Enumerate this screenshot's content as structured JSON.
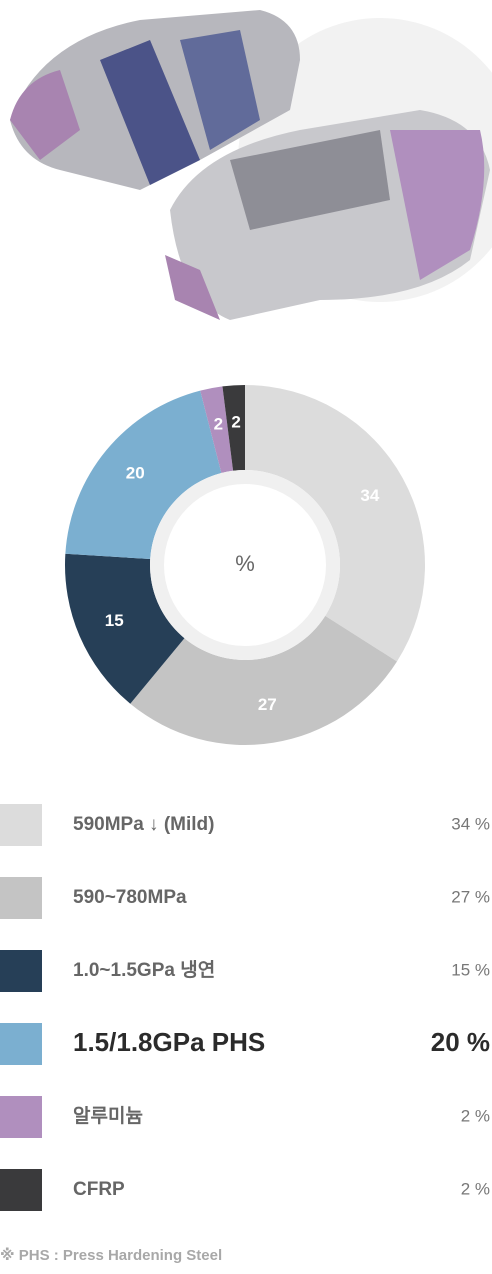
{
  "chart_data": {
    "type": "pie",
    "donut": true,
    "center_label": "%",
    "categories": [
      "590MPa ↓ (Mild)",
      "590~780MPa",
      "1.0~1.5GPa 냉연",
      "1.5/1.8GPa PHS",
      "알루미늄",
      "CFRP"
    ],
    "series": [
      {
        "colors": [
          "#dcdcdc",
          "#c4c4c4",
          "#263f57",
          "#7bafd0",
          "#b08fbe",
          "#3a3a3c"
        ],
        "values": [
          34,
          27,
          15,
          20,
          2,
          2
        ],
        "value_labels": [
          "34 %",
          "27 %",
          "15 %",
          "20 %",
          "2 %",
          "2 %"
        ]
      }
    ],
    "highlight_index": 3,
    "footnote": "※ PHS : Press Hardening Steel"
  }
}
